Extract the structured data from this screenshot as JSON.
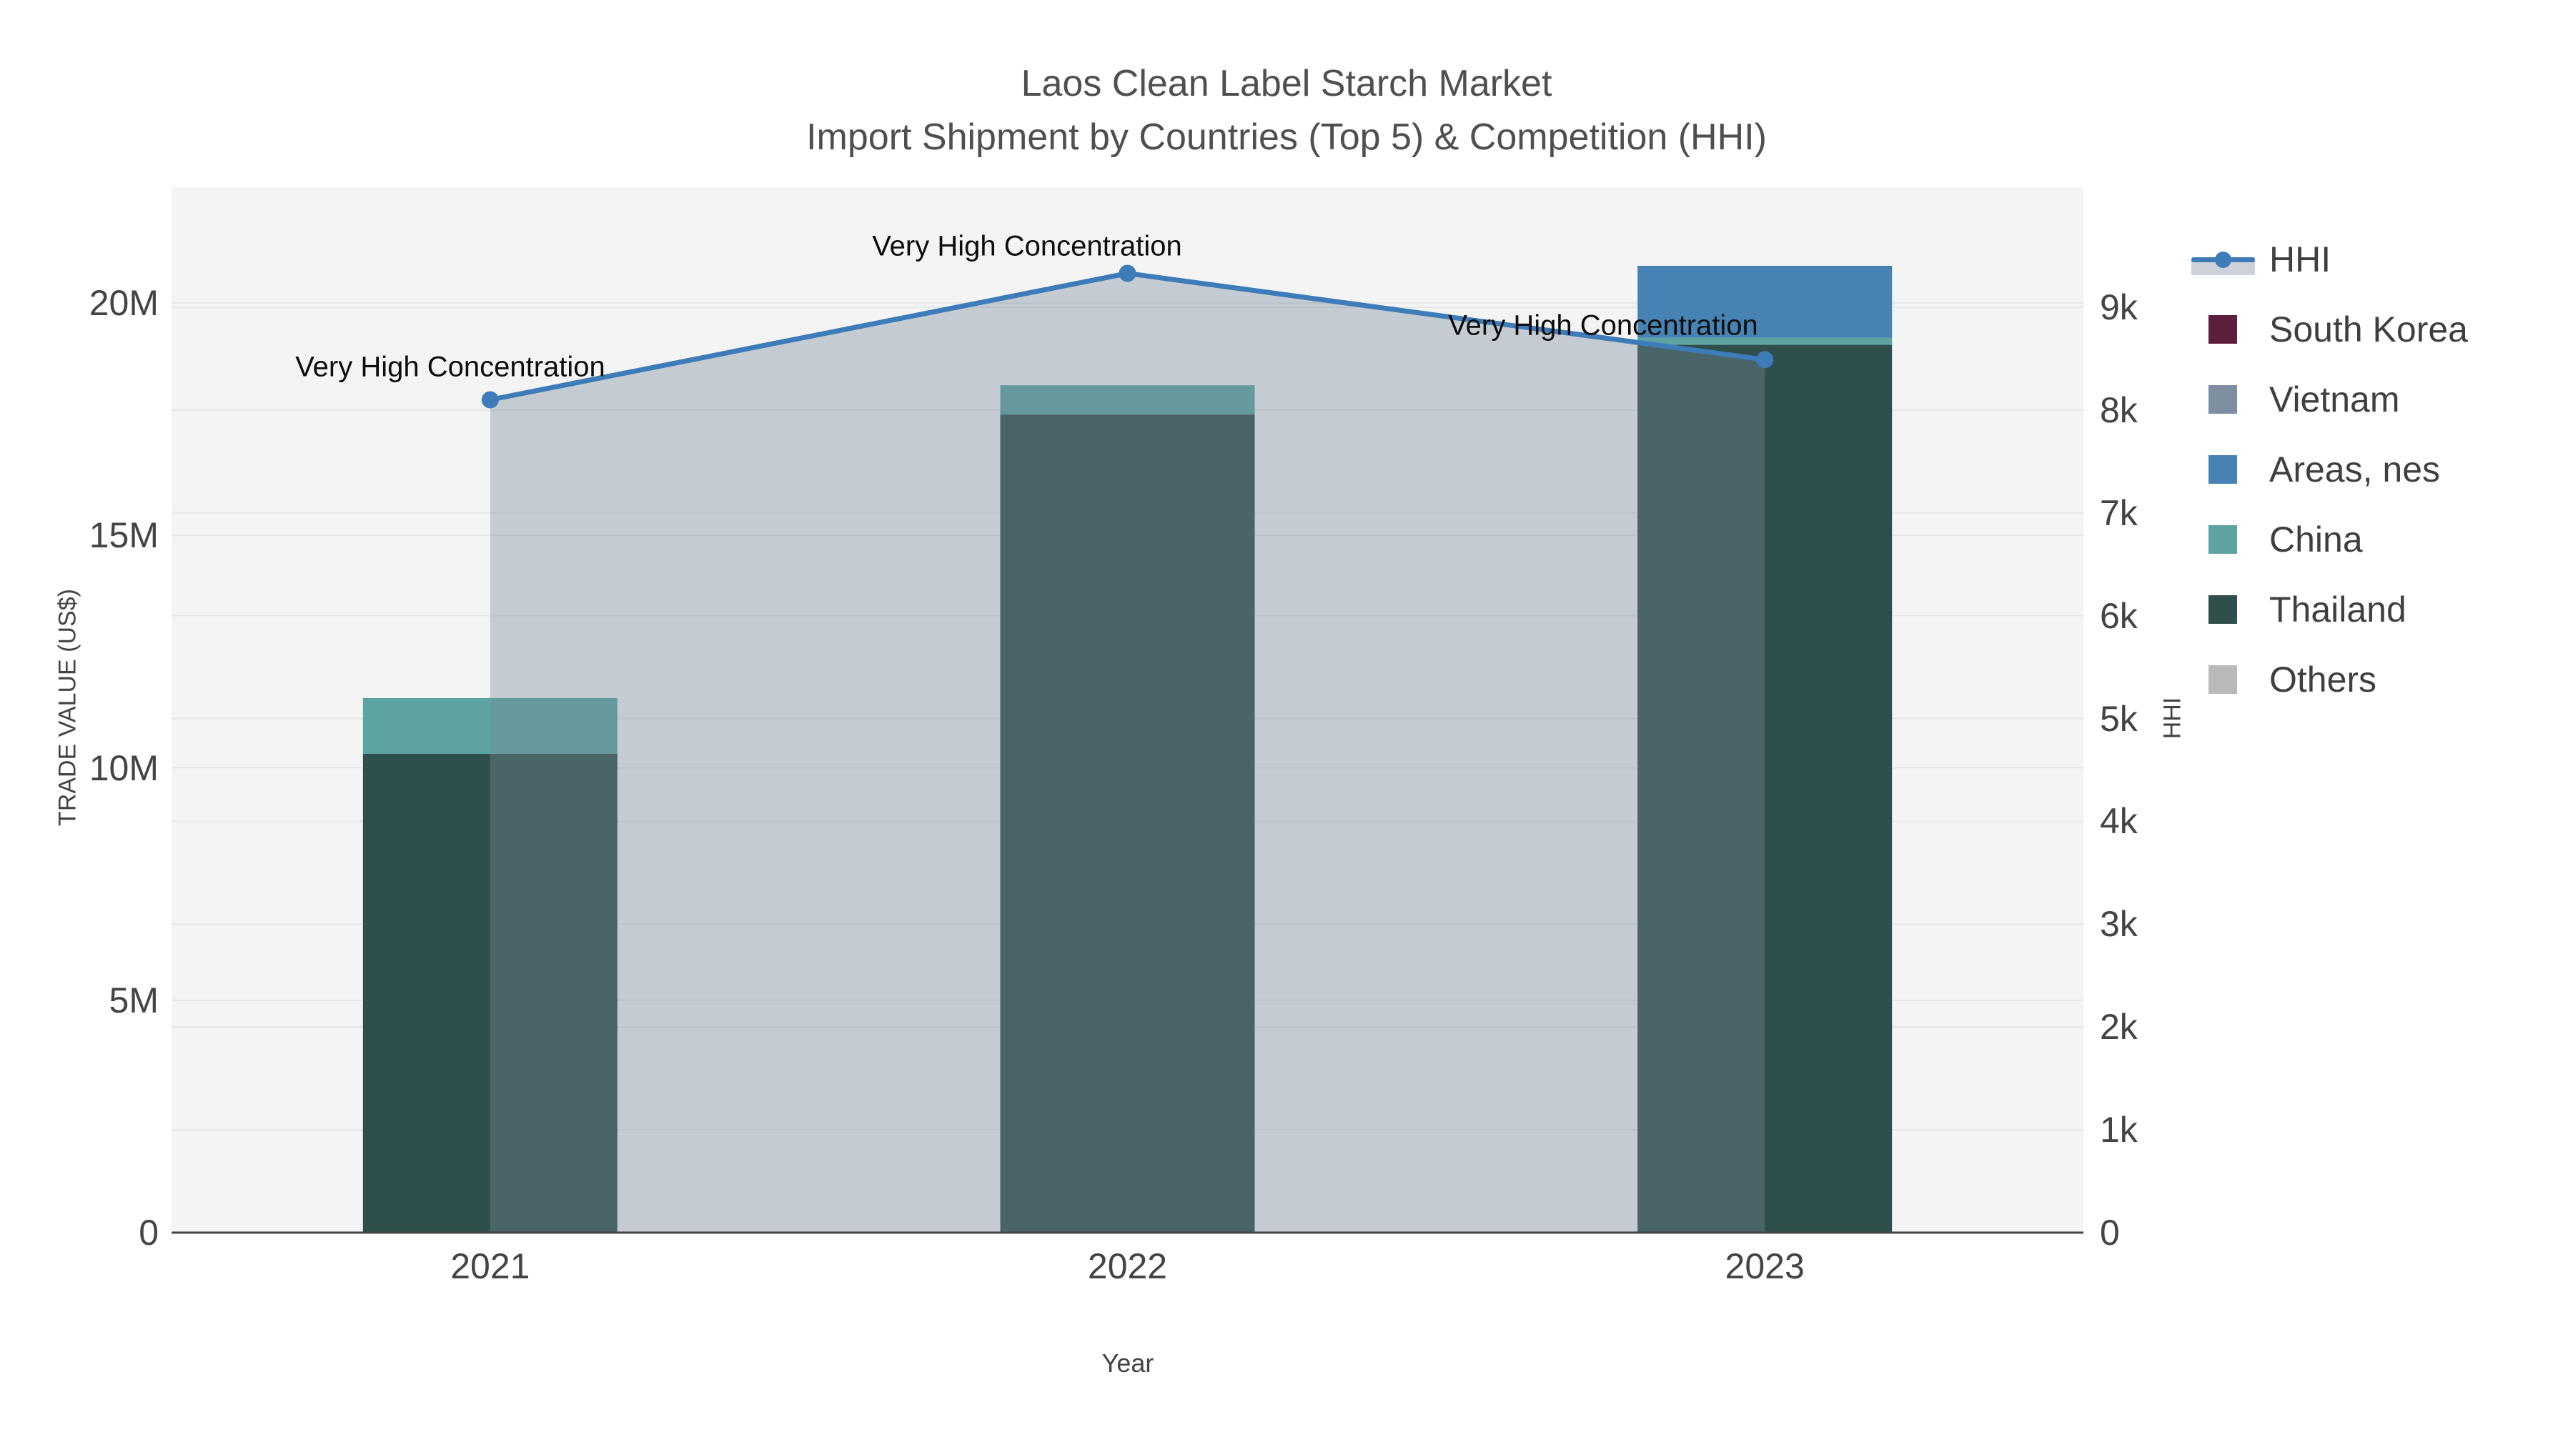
{
  "title": {
    "line1": "Laos Clean Label Starch Market",
    "line2": "Import Shipment by Countries (Top 5) & Competition (HHI)"
  },
  "chart_data": {
    "type": "bar+line",
    "categories": [
      "2021",
      "2022",
      "2023"
    ],
    "xlabel": "Year",
    "ylabel_left": "TRADE VALUE (US$)",
    "ylabel_right": "HHI",
    "left_axis": {
      "unit": "US$ millions",
      "range": [
        0,
        20
      ],
      "ticks": [
        "0",
        "5M",
        "10M",
        "15M",
        "20M"
      ],
      "tick_values": [
        0,
        5,
        10,
        15,
        20
      ]
    },
    "right_axis": {
      "unit": "HHI points",
      "range": [
        0,
        9000
      ],
      "ticks": [
        "0",
        "1k",
        "2k",
        "3k",
        "4k",
        "5k",
        "6k",
        "7k",
        "8k",
        "9k"
      ],
      "tick_values": [
        0,
        1000,
        2000,
        3000,
        4000,
        5000,
        6000,
        7000,
        8000,
        9000
      ]
    },
    "series": [
      {
        "name": "South Korea",
        "color": "#5d1f3e",
        "values_musd": [
          0,
          0,
          0
        ]
      },
      {
        "name": "Vietnam",
        "color": "#7e8ea3",
        "values_musd": [
          0,
          0,
          0
        ]
      },
      {
        "name": "Areas, nes",
        "color": "#4683b4",
        "values_musd": [
          0,
          0,
          1.55
        ]
      },
      {
        "name": "China",
        "color": "#5ca3a2",
        "values_musd": [
          1.2,
          0.63,
          0.15
        ]
      },
      {
        "name": "Thailand",
        "color": "#2e4f4b",
        "values_musd": [
          10.3,
          17.6,
          19.1
        ]
      },
      {
        "name": "Others",
        "color": "#b7b9bb",
        "values_musd": [
          0,
          0,
          0
        ]
      }
    ],
    "stack_order": [
      "Thailand",
      "China",
      "Areas, nes",
      "Vietnam",
      "South Korea",
      "Others"
    ],
    "hhi_line": {
      "name": "HHI",
      "color": "#3d7cb8",
      "area_fill": "rgba(119,136,153,0.38)",
      "values": [
        8100,
        9330,
        8490
      ]
    },
    "annotations": [
      {
        "text": "Very High Concentration",
        "year": "2021"
      },
      {
        "text": "Very High Concentration",
        "year": "2022"
      },
      {
        "text": "Very High Concentration",
        "year": "2023"
      }
    ],
    "grid": true,
    "legend_position": "right"
  },
  "legend": {
    "items": [
      {
        "label": "HHI",
        "color": "#3d7cb8",
        "type": "line"
      },
      {
        "label": "South Korea",
        "color": "#5d1f3e",
        "type": "square"
      },
      {
        "label": "Vietnam",
        "color": "#7e8ea3",
        "type": "square"
      },
      {
        "label": "Areas, nes",
        "color": "#4683b4",
        "type": "square"
      },
      {
        "label": "China",
        "color": "#5ca3a2",
        "type": "square"
      },
      {
        "label": "Thailand",
        "color": "#2e4f4b",
        "type": "square"
      },
      {
        "label": "Others",
        "color": "#b7b9bb",
        "type": "square"
      }
    ]
  },
  "colors": {
    "plot_background": "#f4f4f5",
    "gridline": "#e6e7e9",
    "axis_line": "#444444",
    "title_text": "#4f4f4f",
    "tick_text": "#444444",
    "annotation_text": "#0d0d0d"
  }
}
